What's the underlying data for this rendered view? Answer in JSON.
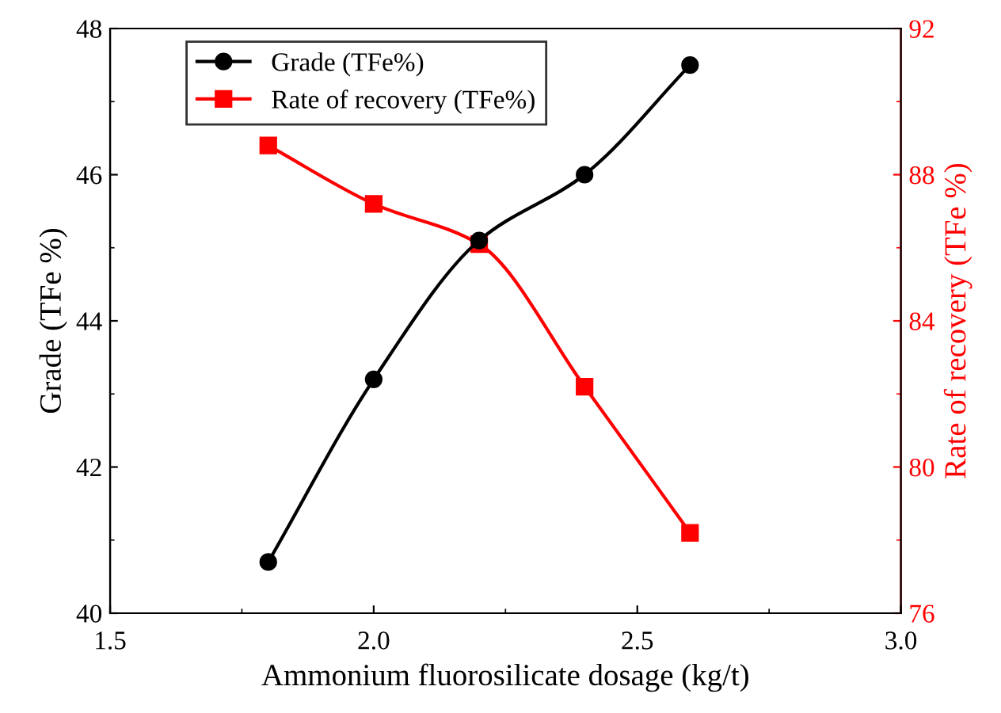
{
  "chart_data": {
    "type": "line",
    "xlabel": "Ammonium fluorosilicate dosage (kg/t)",
    "ylabel": "Grade (TFe %)",
    "y2label": "Rate of recovery (TFe %)",
    "x": [
      1.8,
      2.0,
      2.2,
      2.4,
      2.6
    ],
    "series": [
      {
        "name": "Grade (TFe%)",
        "color": "#000000",
        "marker": "circle",
        "values": [
          40.7,
          43.2,
          45.1,
          46.0,
          47.5
        ]
      },
      {
        "name": "Rate of recovery (TFe%)",
        "color": "#ff0000",
        "marker": "square",
        "axis": "y2",
        "values": [
          88.8,
          87.2,
          86.1,
          82.2,
          78.2
        ]
      }
    ],
    "xlim": [
      1.5,
      3.0
    ],
    "xticks": [
      1.5,
      {
        "value": 2,
        "label": "2.0"
      },
      2.5,
      {
        "value": 3,
        "label": "3.0"
      }
    ],
    "ylim": [
      40,
      48
    ],
    "yticks": [
      40,
      42,
      44,
      46,
      48
    ],
    "y2lim": [
      76,
      92
    ],
    "y2ticks": [
      76,
      80,
      84,
      88,
      92
    ],
    "legend": "top left",
    "grid": false,
    "line_style": "solid"
  }
}
